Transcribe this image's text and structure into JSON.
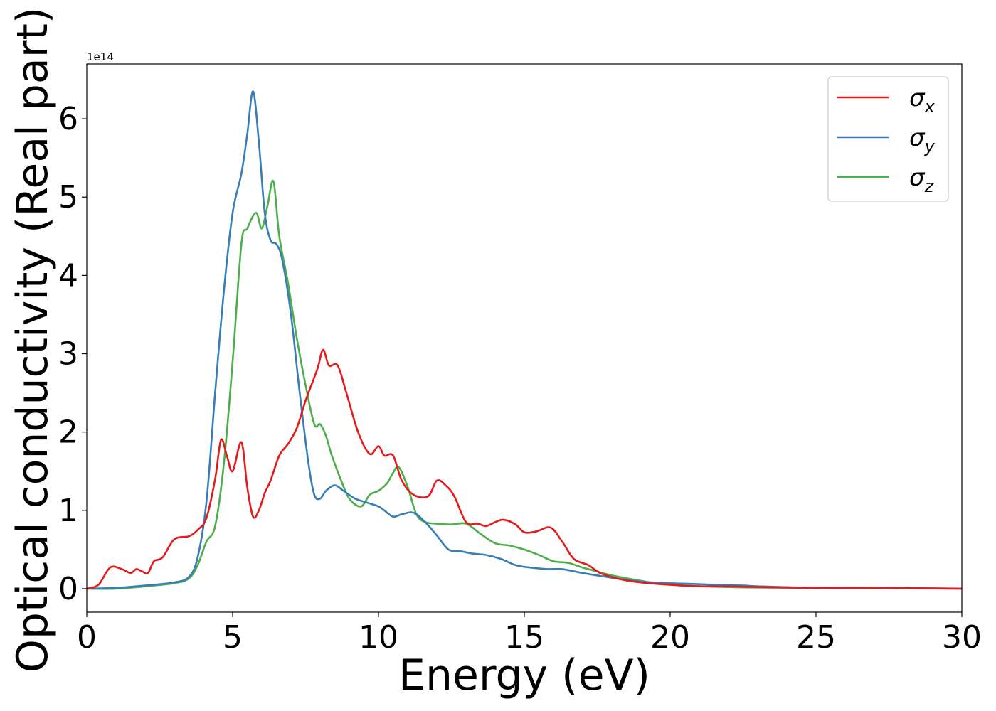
{
  "chart_data": {
    "type": "line",
    "title": "",
    "xlabel": "Energy (eV)",
    "ylabel": "Optical conductivity (Real part)",
    "y_offset_label": "1e14",
    "xlim": [
      0,
      30
    ],
    "ylim": [
      -0.3,
      6.7
    ],
    "xticks": [
      0,
      5,
      10,
      15,
      20,
      25,
      30
    ],
    "yticks": [
      0,
      1,
      2,
      3,
      4,
      5,
      6
    ],
    "grid": false,
    "legend_position": "top-right",
    "series": [
      {
        "name": "σ",
        "subscript": "x",
        "color": "#e41a1c",
        "x": [
          0,
          0.4,
          0.8,
          1.2,
          1.5,
          1.7,
          1.9,
          2.1,
          2.3,
          2.6,
          3.0,
          3.5,
          3.8,
          4.1,
          4.4,
          4.6,
          4.8,
          5.0,
          5.3,
          5.5,
          5.7,
          5.9,
          6.1,
          6.3,
          6.6,
          6.9,
          7.2,
          7.5,
          7.9,
          8.1,
          8.3,
          8.6,
          8.9,
          9.3,
          9.7,
          10.0,
          10.2,
          10.5,
          10.8,
          11.2,
          11.7,
          12.0,
          12.3,
          12.6,
          13.0,
          13.4,
          13.7,
          14.0,
          14.3,
          14.7,
          15.0,
          15.4,
          15.9,
          16.3,
          16.7,
          17.2,
          17.6,
          18.3,
          19.0,
          20.0,
          21.0,
          22.0,
          23.0,
          25.0,
          27.0,
          30.0
        ],
        "y": [
          0.0,
          0.05,
          0.27,
          0.25,
          0.2,
          0.25,
          0.22,
          0.2,
          0.35,
          0.4,
          0.63,
          0.67,
          0.75,
          0.9,
          1.4,
          1.9,
          1.7,
          1.5,
          1.87,
          1.3,
          0.92,
          1.0,
          1.22,
          1.38,
          1.7,
          1.85,
          2.05,
          2.4,
          2.8,
          3.05,
          2.85,
          2.85,
          2.5,
          2.0,
          1.72,
          1.82,
          1.7,
          1.7,
          1.38,
          1.2,
          1.18,
          1.38,
          1.32,
          1.18,
          0.85,
          0.83,
          0.8,
          0.85,
          0.88,
          0.82,
          0.72,
          0.73,
          0.78,
          0.6,
          0.38,
          0.3,
          0.2,
          0.12,
          0.08,
          0.05,
          0.03,
          0.03,
          0.02,
          0.01,
          0.01,
          0.0
        ]
      },
      {
        "name": "σ",
        "subscript": "y",
        "color": "#377eb8",
        "x": [
          0,
          1.0,
          2.0,
          3.0,
          3.5,
          3.8,
          4.1,
          4.4,
          4.7,
          5.0,
          5.3,
          5.5,
          5.7,
          5.9,
          6.1,
          6.3,
          6.5,
          6.7,
          7.0,
          7.3,
          7.6,
          7.8,
          8.0,
          8.2,
          8.5,
          8.8,
          9.2,
          9.6,
          10.0,
          10.2,
          10.5,
          10.8,
          11.2,
          11.6,
          12.0,
          12.4,
          12.8,
          13.2,
          13.7,
          14.2,
          14.7,
          15.2,
          15.8,
          16.3,
          17.0,
          18.0,
          19.0,
          20.0,
          20.8,
          21.5,
          22.5,
          23.0,
          25.0,
          27.0,
          30.0
        ],
        "y": [
          0.0,
          0.01,
          0.04,
          0.08,
          0.15,
          0.4,
          1.1,
          2.5,
          3.8,
          4.8,
          5.3,
          5.8,
          6.35,
          5.7,
          4.8,
          4.45,
          4.4,
          4.2,
          3.5,
          2.5,
          1.6,
          1.2,
          1.15,
          1.25,
          1.32,
          1.25,
          1.15,
          1.1,
          1.05,
          1.0,
          0.92,
          0.95,
          0.97,
          0.85,
          0.68,
          0.5,
          0.48,
          0.45,
          0.43,
          0.38,
          0.3,
          0.27,
          0.25,
          0.25,
          0.2,
          0.14,
          0.09,
          0.07,
          0.06,
          0.05,
          0.04,
          0.03,
          0.01,
          0.01,
          0.0
        ]
      },
      {
        "name": "σ",
        "subscript": "z",
        "color": "#4daf4a",
        "x": [
          0,
          1.0,
          2.0,
          3.0,
          3.5,
          3.8,
          4.1,
          4.4,
          4.7,
          5.0,
          5.3,
          5.5,
          5.8,
          6.0,
          6.2,
          6.4,
          6.6,
          6.9,
          7.2,
          7.5,
          7.8,
          8.0,
          8.2,
          8.4,
          8.7,
          9.0,
          9.4,
          9.7,
          10.0,
          10.3,
          10.5,
          10.7,
          11.0,
          11.3,
          11.6,
          12.0,
          12.5,
          13.0,
          13.5,
          14.0,
          14.5,
          15.0,
          15.5,
          16.0,
          16.5,
          17.0,
          17.5,
          18.0,
          19.0,
          20.0,
          22.0,
          25.0,
          30.0
        ],
        "y": [
          0.0,
          0.0,
          0.03,
          0.07,
          0.13,
          0.3,
          0.6,
          0.8,
          1.6,
          2.9,
          4.4,
          4.6,
          4.8,
          4.6,
          4.9,
          5.2,
          4.5,
          3.9,
          3.2,
          2.6,
          2.1,
          2.1,
          1.95,
          1.7,
          1.4,
          1.15,
          1.05,
          1.2,
          1.25,
          1.35,
          1.48,
          1.55,
          1.3,
          0.95,
          0.85,
          0.83,
          0.82,
          0.83,
          0.7,
          0.58,
          0.55,
          0.5,
          0.43,
          0.35,
          0.33,
          0.27,
          0.22,
          0.17,
          0.1,
          0.05,
          0.02,
          0.01,
          0.0
        ]
      }
    ]
  }
}
